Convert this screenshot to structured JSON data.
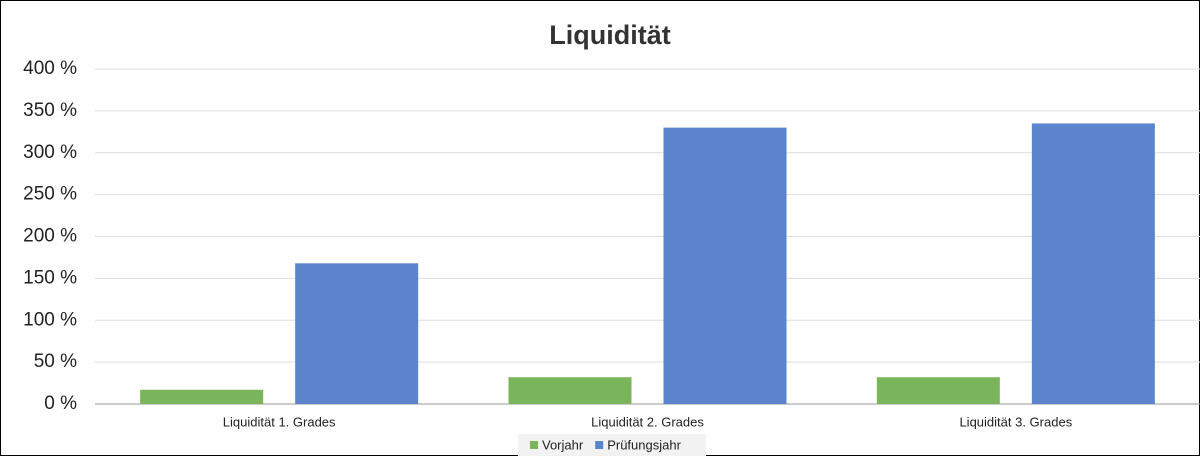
{
  "chart_data": {
    "type": "bar",
    "title": "Liquidität",
    "categories": [
      "Liquidität 1. Grades",
      "Liquidität 2. Grades",
      "Liquidität 3. Grades"
    ],
    "series": [
      {
        "name": "Vorjahr",
        "color": "#7ab55c",
        "values": [
          17,
          32,
          32
        ]
      },
      {
        "name": "Prüfungsjahr",
        "color": "#5b84cc",
        "values": [
          168,
          330,
          335
        ]
      }
    ],
    "ylim": [
      0,
      400
    ],
    "yticks": [
      {
        "value": 0,
        "label": "0 %"
      },
      {
        "value": 50,
        "label": "50 %"
      },
      {
        "value": 100,
        "label": "100 %"
      },
      {
        "value": 150,
        "label": "150 %"
      },
      {
        "value": 200,
        "label": "200 %"
      },
      {
        "value": 250,
        "label": "250 %"
      },
      {
        "value": 300,
        "label": "300 %"
      },
      {
        "value": 350,
        "label": "350 %"
      },
      {
        "value": 400,
        "label": "400 %"
      }
    ],
    "grid": true,
    "legend": "bottom"
  }
}
